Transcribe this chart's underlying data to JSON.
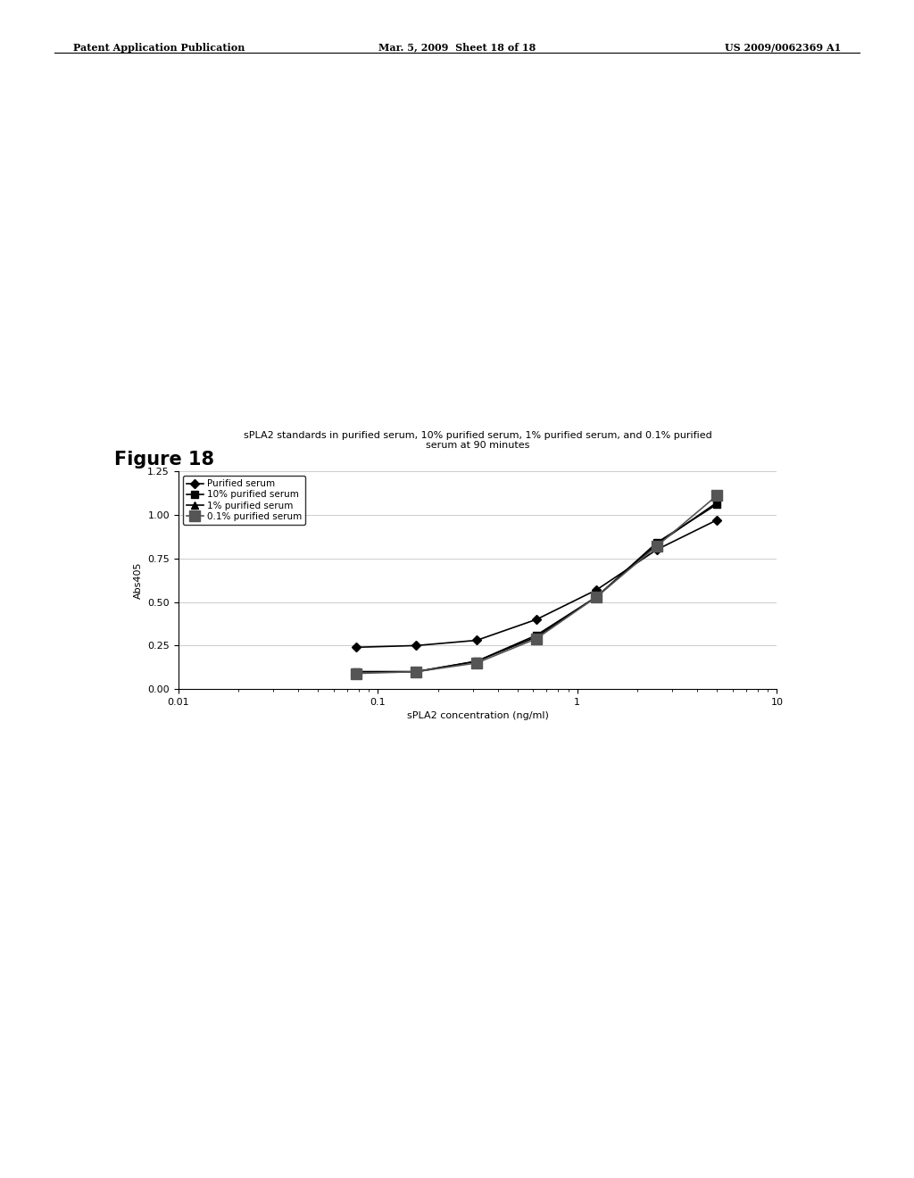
{
  "title": "sPLA2 standards in purified serum, 10% purified serum, 1% purified serum, and 0.1% purified\nserum at 90 minutes",
  "xlabel": "sPLA2 concentration (ng/ml)",
  "ylabel": "Abs405",
  "figure_title": "Figure 18",
  "xlim": [
    0.01,
    10
  ],
  "ylim": [
    0.0,
    1.25
  ],
  "yticks": [
    0.0,
    0.25,
    0.5,
    0.75,
    1.0,
    1.25
  ],
  "background_color": "#ffffff",
  "series": [
    {
      "label": "Purified serum",
      "marker": "D",
      "color": "#000000",
      "markersize": 5,
      "linewidth": 1.2,
      "x": [
        0.078,
        0.156,
        0.313,
        0.625,
        1.25,
        2.5,
        5.0
      ],
      "y": [
        0.24,
        0.25,
        0.28,
        0.4,
        0.57,
        0.8,
        0.97
      ]
    },
    {
      "label": "10% purified serum",
      "marker": "s",
      "color": "#000000",
      "markersize": 6,
      "linewidth": 1.2,
      "x": [
        0.078,
        0.156,
        0.313,
        0.625,
        1.25,
        2.5,
        5.0
      ],
      "y": [
        0.1,
        0.1,
        0.16,
        0.31,
        0.53,
        0.84,
        1.06
      ]
    },
    {
      "label": "1% purified serum",
      "marker": "^",
      "color": "#000000",
      "markersize": 6,
      "linewidth": 1.2,
      "x": [
        0.078,
        0.156,
        0.313,
        0.625,
        1.25,
        2.5,
        5.0
      ],
      "y": [
        0.1,
        0.1,
        0.16,
        0.3,
        0.53,
        0.83,
        1.07
      ]
    },
    {
      "label": "0.1% purified serum",
      "marker": "s",
      "color": "#555555",
      "markersize": 8,
      "linewidth": 1.2,
      "x": [
        0.078,
        0.156,
        0.313,
        0.625,
        1.25,
        2.5,
        5.0
      ],
      "y": [
        0.09,
        0.1,
        0.15,
        0.29,
        0.53,
        0.82,
        1.11
      ]
    }
  ],
  "legend_loc": "upper left",
  "title_fontsize": 8,
  "axis_fontsize": 8,
  "legend_fontsize": 7.5,
  "figure_title_fontsize": 15,
  "header_left": "Patent Application Publication",
  "header_mid": "Mar. 5, 2009  Sheet 18 of 18",
  "header_right": "US 2009/0062369 A1"
}
